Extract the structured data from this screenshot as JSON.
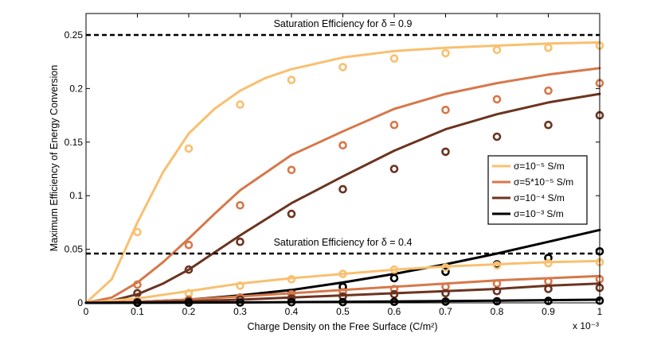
{
  "chart_data": {
    "type": "line",
    "xlabel": "Charge Density on the Free Surface (C/m²)",
    "ylabel": "Maximum Efficiency of Energy Conversion",
    "x_exponent_label": "x 10⁻³",
    "xlim": [
      0,
      1
    ],
    "ylim": [
      0,
      0.27
    ],
    "xticks": [
      0,
      0.1,
      0.2,
      0.3,
      0.4,
      0.5,
      0.6,
      0.7,
      0.8,
      0.9,
      1
    ],
    "xtick_labels": [
      "0",
      "0.1",
      "0.2",
      "0.3",
      "0.4",
      "0.5",
      "0.6",
      "0.7",
      "0.8",
      "0.9",
      "1"
    ],
    "yticks": [
      0,
      0.05,
      0.1,
      0.15,
      0.2,
      0.25
    ],
    "ytick_labels": [
      "0",
      "0.05",
      "0.1",
      "0.15",
      "0.2",
      "0.25"
    ],
    "grid": false,
    "legend_position": "right",
    "reference_lines": [
      {
        "y": 0.25,
        "label": "Saturation Efficiency for δ = 0.9",
        "style": "dashed",
        "color": "#000000"
      },
      {
        "y": 0.046,
        "label": "Saturation Efficiency for δ = 0.4",
        "style": "dashed",
        "color": "#000000"
      }
    ],
    "series": [
      {
        "name": "σ=10⁻⁵ S/m",
        "color": "#F8C070",
        "group": "δ = 0.9",
        "line_x": [
          0,
          0.05,
          0.1,
          0.15,
          0.2,
          0.25,
          0.3,
          0.35,
          0.4,
          0.5,
          0.6,
          0.7,
          0.8,
          0.9,
          1.0
        ],
        "line_y": [
          0,
          0.022,
          0.075,
          0.122,
          0.158,
          0.181,
          0.198,
          0.21,
          0.218,
          0.229,
          0.235,
          0.238,
          0.24,
          0.242,
          0.243
        ],
        "points_x": [
          0.1,
          0.2,
          0.3,
          0.4,
          0.5,
          0.6,
          0.7,
          0.8,
          0.9,
          1.0
        ],
        "points_y": [
          0.066,
          0.144,
          0.185,
          0.208,
          0.22,
          0.228,
          0.233,
          0.236,
          0.238,
          0.24
        ]
      },
      {
        "name": "σ=5*10⁻⁵ S/m",
        "color": "#D6784A",
        "group": "δ = 0.9",
        "line_x": [
          0,
          0.05,
          0.1,
          0.15,
          0.2,
          0.25,
          0.3,
          0.4,
          0.5,
          0.6,
          0.7,
          0.8,
          0.9,
          1.0
        ],
        "line_y": [
          0,
          0.005,
          0.019,
          0.038,
          0.06,
          0.083,
          0.105,
          0.138,
          0.16,
          0.181,
          0.195,
          0.205,
          0.213,
          0.219
        ],
        "points_x": [
          0.1,
          0.2,
          0.3,
          0.4,
          0.5,
          0.6,
          0.7,
          0.8,
          0.9,
          1.0
        ],
        "points_y": [
          0.017,
          0.054,
          0.091,
          0.124,
          0.147,
          0.166,
          0.18,
          0.19,
          0.198,
          0.205
        ]
      },
      {
        "name": "σ=10⁻⁴ S/m",
        "color": "#6B3420",
        "group": "δ = 0.9",
        "line_x": [
          0,
          0.05,
          0.1,
          0.15,
          0.2,
          0.25,
          0.3,
          0.4,
          0.5,
          0.6,
          0.7,
          0.8,
          0.9,
          1.0
        ],
        "line_y": [
          0,
          0.002,
          0.008,
          0.018,
          0.031,
          0.047,
          0.063,
          0.093,
          0.118,
          0.142,
          0.162,
          0.176,
          0.187,
          0.195
        ],
        "points_x": [
          0.1,
          0.2,
          0.3,
          0.4,
          0.5,
          0.6,
          0.7,
          0.8,
          0.9,
          1.0
        ],
        "points_y": [
          0.009,
          0.031,
          0.057,
          0.083,
          0.106,
          0.125,
          0.141,
          0.155,
          0.166,
          0.175
        ]
      },
      {
        "name": "σ=10⁻³ S/m",
        "color": "#000000",
        "group": "δ = 0.9",
        "line_x": [
          0,
          0.1,
          0.2,
          0.3,
          0.4,
          0.5,
          0.6,
          0.7,
          0.8,
          0.9,
          1.0
        ],
        "line_y": [
          0,
          0.001,
          0.003,
          0.007,
          0.012,
          0.019,
          0.027,
          0.036,
          0.046,
          0.057,
          0.068
        ],
        "points_x": [
          0.1,
          0.2,
          0.3,
          0.4,
          0.5,
          0.6,
          0.7,
          0.8,
          0.9,
          1.0
        ],
        "points_y": [
          0.001,
          0.002,
          0.005,
          0.009,
          0.015,
          0.023,
          0.029,
          0.036,
          0.042,
          0.048
        ]
      },
      {
        "name": "σ=10⁻⁵ S/m",
        "color": "#F8C070",
        "group": "δ = 0.4",
        "line_x": [
          0,
          0.1,
          0.2,
          0.3,
          0.4,
          0.5,
          0.6,
          0.7,
          0.8,
          0.9,
          1.0
        ],
        "line_y": [
          0,
          0.004,
          0.011,
          0.018,
          0.023,
          0.027,
          0.031,
          0.034,
          0.036,
          0.038,
          0.039
        ],
        "points_x": [
          0.1,
          0.2,
          0.3,
          0.4,
          0.5,
          0.6,
          0.7,
          0.8,
          0.9,
          1.0
        ],
        "points_y": [
          0.002,
          0.009,
          0.016,
          0.022,
          0.027,
          0.031,
          0.033,
          0.035,
          0.037,
          0.038
        ]
      },
      {
        "name": "σ=5*10⁻⁵ S/m",
        "color": "#D6784A",
        "group": "δ = 0.4",
        "line_x": [
          0,
          0.1,
          0.2,
          0.3,
          0.4,
          0.5,
          0.6,
          0.7,
          0.8,
          0.9,
          1.0
        ],
        "line_y": [
          0,
          0.001,
          0.003,
          0.006,
          0.009,
          0.012,
          0.015,
          0.018,
          0.021,
          0.023,
          0.025
        ],
        "points_x": [
          0.1,
          0.2,
          0.3,
          0.4,
          0.5,
          0.6,
          0.7,
          0.8,
          0.9,
          1.0
        ],
        "points_y": [
          0.001,
          0.003,
          0.005,
          0.008,
          0.01,
          0.013,
          0.015,
          0.018,
          0.02,
          0.022
        ]
      },
      {
        "name": "σ=10⁻⁴ S/m",
        "color": "#6B3420",
        "group": "δ = 0.4",
        "line_x": [
          0,
          0.1,
          0.2,
          0.3,
          0.4,
          0.5,
          0.6,
          0.7,
          0.8,
          0.9,
          1.0
        ],
        "line_y": [
          0,
          0.0005,
          0.0015,
          0.003,
          0.005,
          0.007,
          0.009,
          0.011,
          0.013,
          0.016,
          0.018
        ],
        "points_x": [
          0.1,
          0.2,
          0.3,
          0.4,
          0.5,
          0.6,
          0.7,
          0.8,
          0.9,
          1.0
        ],
        "points_y": [
          0.0005,
          0.0015,
          0.003,
          0.004,
          0.006,
          0.008,
          0.009,
          0.011,
          0.013,
          0.014
        ]
      },
      {
        "name": "σ=10⁻³ S/m",
        "color": "#000000",
        "group": "δ = 0.4",
        "line_x": [
          0,
          0.1,
          0.2,
          0.3,
          0.4,
          0.5,
          0.6,
          0.7,
          0.8,
          0.9,
          1.0
        ],
        "line_y": [
          0,
          0.0001,
          0.0002,
          0.0004,
          0.0007,
          0.001,
          0.0013,
          0.0017,
          0.002,
          0.0025,
          0.003
        ],
        "points_x": [
          0.1,
          0.2,
          0.3,
          0.4,
          0.5,
          0.6,
          0.7,
          0.8,
          0.9,
          1.0
        ],
        "points_y": [
          0.0001,
          0.0002,
          0.0003,
          0.0005,
          0.0007,
          0.001,
          0.0012,
          0.0015,
          0.0018,
          0.002
        ]
      }
    ],
    "legend": [
      {
        "label": "σ=10⁻⁵ S/m",
        "color": "#F8C070"
      },
      {
        "label": "σ=5*10⁻⁵ S/m",
        "color": "#D6784A"
      },
      {
        "label": "σ=10⁻⁴ S/m",
        "color": "#6B3420"
      },
      {
        "label": "σ=10⁻³ S/m",
        "color": "#000000"
      }
    ]
  }
}
